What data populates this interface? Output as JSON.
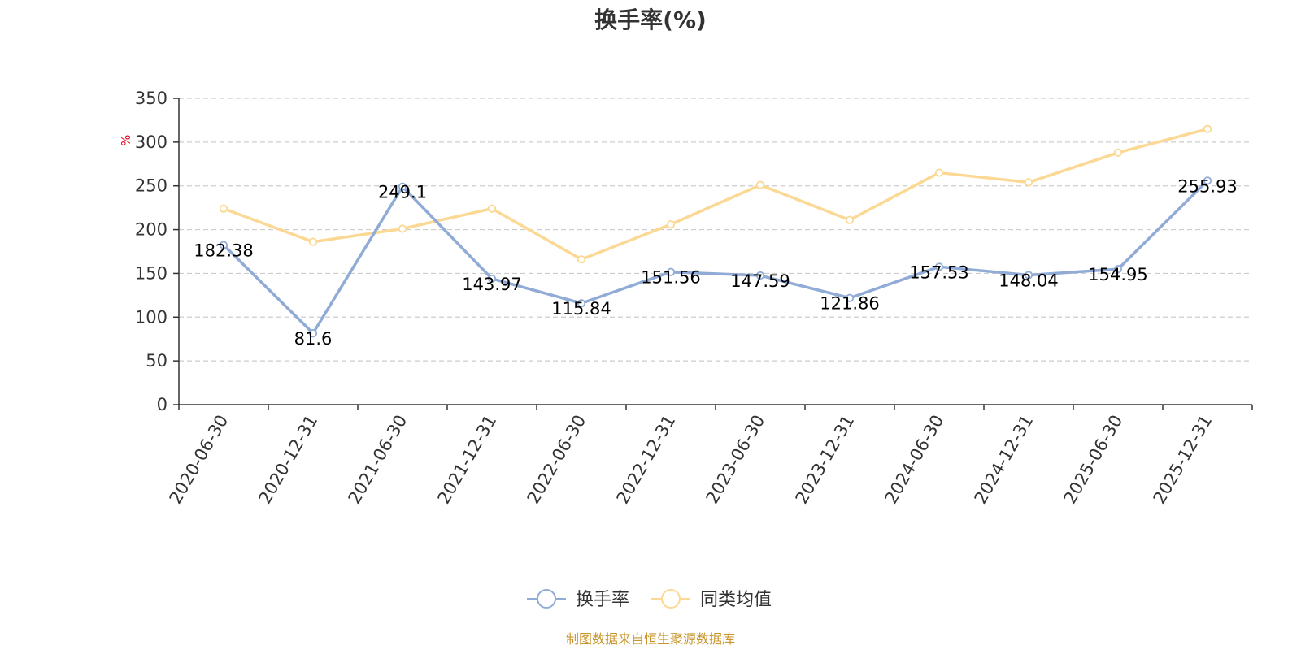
{
  "chart_data": {
    "type": "line",
    "title": "换手率(%)",
    "ylabel": "%",
    "xlabel": "",
    "ylim": [
      0,
      350
    ],
    "yticks": [
      0,
      50,
      100,
      150,
      200,
      250,
      300,
      350
    ],
    "categories": [
      "2020-06-30",
      "2020-12-31",
      "2021-06-30",
      "2021-12-31",
      "2022-06-30",
      "2022-12-31",
      "2023-06-30",
      "2023-12-31",
      "2024-06-30",
      "2024-12-31",
      "2025-06-30",
      "2025-12-31"
    ],
    "grid": true,
    "legend_position": "bottom-center",
    "series": [
      {
        "name": "换手率",
        "color": "#8fabd6",
        "show_labels": true,
        "values": [
          182.38,
          81.6,
          249.1,
          143.97,
          115.84,
          151.56,
          147.59,
          121.86,
          157.53,
          148.04,
          154.95,
          255.93
        ],
        "labels": [
          "182.38",
          "81.6",
          "249.1",
          "143.97",
          "115.84",
          "151.56",
          "147.59",
          "121.86",
          "157.53",
          "148.04",
          "154.95",
          "255.93"
        ]
      },
      {
        "name": "同类均值",
        "color": "#fbd994",
        "show_labels": false,
        "values": [
          224,
          186,
          201,
          224,
          166,
          206,
          251,
          211,
          265,
          254,
          288,
          315
        ]
      }
    ],
    "source": "制图数据来自恒生聚源数据库",
    "unit_color": "#e8001c",
    "source_color": "#c8962c"
  }
}
